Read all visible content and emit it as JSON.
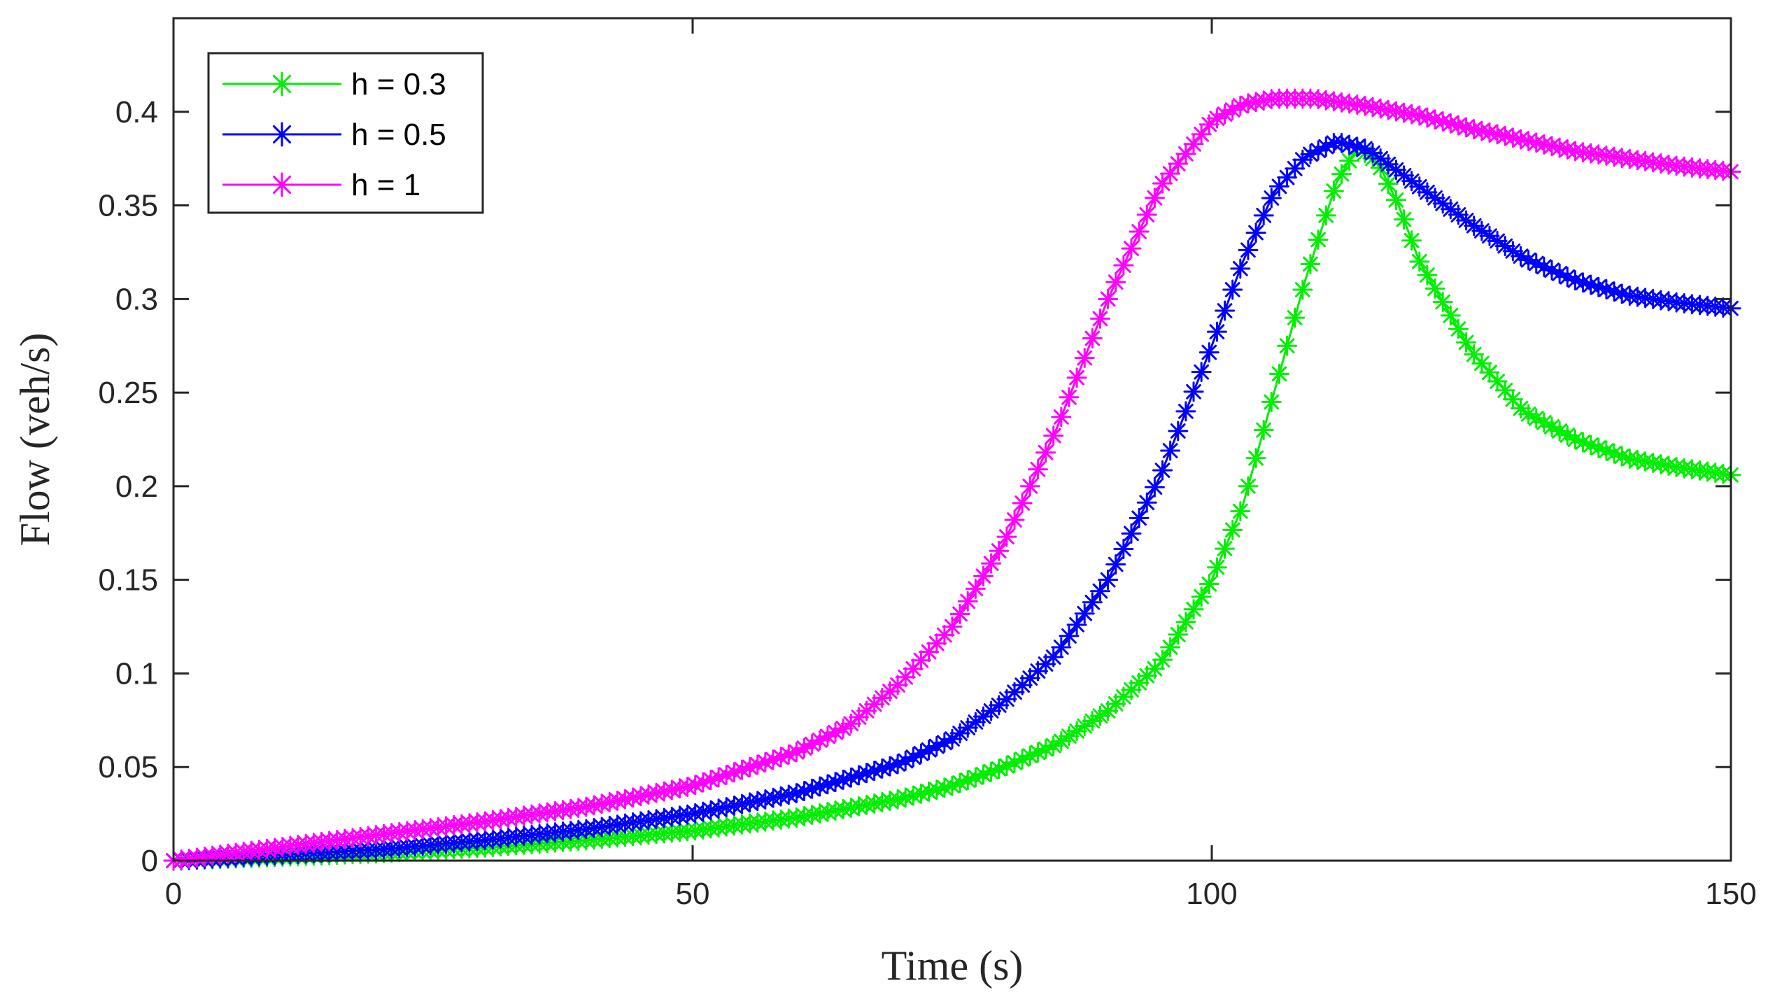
{
  "chart_data": {
    "type": "line",
    "title": "",
    "xlabel": "Time (s)",
    "ylabel": "Flow (veh/s)",
    "xlim": [
      0,
      150
    ],
    "ylim": [
      0,
      0.45
    ],
    "xticks": [
      0,
      50,
      100,
      150
    ],
    "xtick_labels": [
      "0",
      "50",
      "100",
      "150"
    ],
    "yticks": [
      0,
      0.05,
      0.1,
      0.15,
      0.2,
      0.25,
      0.3,
      0.35,
      0.4
    ],
    "ytick_labels": [
      "0",
      "0.05",
      "0.1",
      "0.15",
      "0.2",
      "0.25",
      "0.3",
      "0.35",
      "0.4"
    ],
    "grid": false,
    "legend_position": "top-left",
    "marker": "asterisk",
    "series": [
      {
        "name": "h = 0.3",
        "color": "#00ee00",
        "x": [
          0,
          10,
          20,
          30,
          40,
          50,
          60,
          70,
          75,
          80,
          85,
          90,
          95,
          100,
          103,
          106,
          109,
          112,
          114,
          116,
          118,
          120,
          125,
          130,
          135,
          140,
          145,
          150
        ],
        "y": [
          0,
          0.002,
          0.004,
          0.007,
          0.011,
          0.016,
          0.023,
          0.033,
          0.04,
          0.05,
          0.062,
          0.08,
          0.105,
          0.15,
          0.19,
          0.25,
          0.31,
          0.362,
          0.381,
          0.373,
          0.35,
          0.32,
          0.272,
          0.24,
          0.225,
          0.215,
          0.21,
          0.206
        ]
      },
      {
        "name": "h = 0.5",
        "color": "#0000ff",
        "x": [
          0,
          10,
          20,
          30,
          40,
          50,
          60,
          70,
          75,
          80,
          85,
          90,
          95,
          100,
          103,
          106,
          109,
          112,
          115,
          118,
          120,
          125,
          130,
          135,
          140,
          145,
          150
        ],
        "y": [
          0,
          0.003,
          0.006,
          0.011,
          0.017,
          0.025,
          0.036,
          0.052,
          0.065,
          0.085,
          0.11,
          0.15,
          0.205,
          0.275,
          0.32,
          0.357,
          0.376,
          0.384,
          0.38,
          0.368,
          0.36,
          0.34,
          0.322,
          0.31,
          0.302,
          0.298,
          0.295
        ]
      },
      {
        "name": "h = 1",
        "color": "#ff00ff",
        "x": [
          0,
          10,
          20,
          30,
          40,
          50,
          60,
          65,
          70,
          75,
          80,
          85,
          90,
          95,
          100,
          103,
          106,
          110,
          115,
          120,
          125,
          130,
          135,
          140,
          145,
          150
        ],
        "y": [
          0,
          0.007,
          0.014,
          0.021,
          0.029,
          0.04,
          0.058,
          0.072,
          0.095,
          0.125,
          0.17,
          0.23,
          0.3,
          0.36,
          0.395,
          0.404,
          0.407,
          0.407,
          0.403,
          0.398,
          0.391,
          0.385,
          0.379,
          0.375,
          0.371,
          0.368
        ]
      }
    ]
  }
}
